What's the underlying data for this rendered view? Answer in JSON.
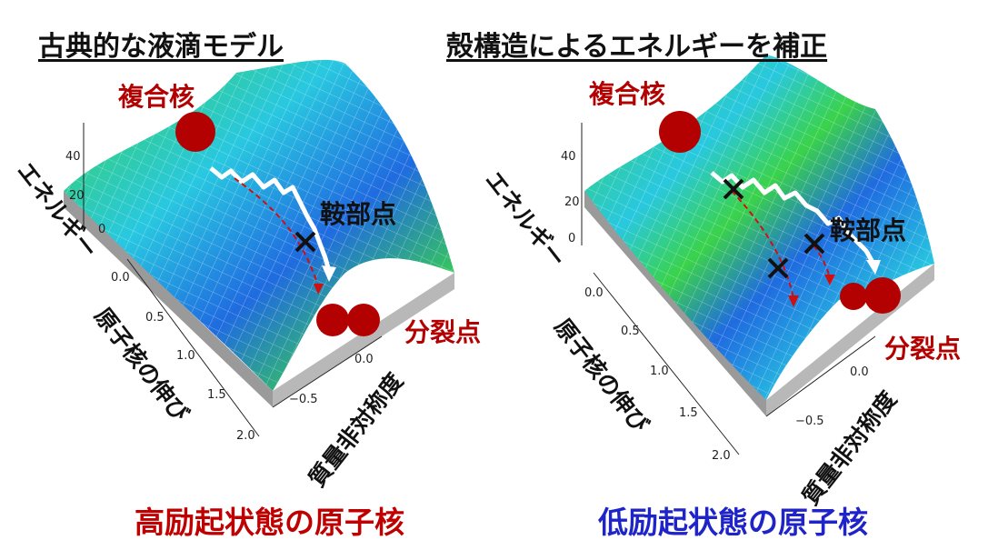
{
  "left": {
    "title": "古典的な液滴モデル",
    "caption": "高励起状態の原子核",
    "compound_label": "複合核",
    "saddle_label": "鞍部点",
    "scission_label": "分裂点",
    "energy_axis_label": "エネルギー",
    "elongation_axis_label": "原子核の伸び",
    "asymmetry_axis_label": "質量非対称度",
    "energy_ticks": [
      "40",
      "20",
      "0"
    ],
    "elongation_ticks": [
      "0.0",
      "0.5",
      "1.0",
      "1.5",
      "2.0"
    ],
    "asymmetry_ticks": [
      "−0.5",
      "0.0"
    ]
  },
  "right": {
    "title": "殻構造によるエネルギーを補正",
    "caption": "低励起状態の原子核",
    "compound_label": "複合核",
    "saddle_label": "鞍部点",
    "scission_label": "分裂点",
    "energy_axis_label": "エネルギー",
    "elongation_axis_label": "原子核の伸び",
    "asymmetry_axis_label": "質量非対称度",
    "energy_ticks": [
      "40",
      "20",
      "0"
    ],
    "elongation_ticks": [
      "0.0",
      "0.5",
      "1.0",
      "1.5",
      "2.0"
    ],
    "asymmetry_ticks": [
      "−0.5",
      "0.0"
    ]
  },
  "colors": {
    "nucleus_red": "#b30000",
    "surface_green": "#3ad24a",
    "surface_blue": "#1f6be0",
    "surface_cyan": "#28c8e0",
    "high_excitation_caption": "#c00000",
    "low_excitation_caption": "#1f24c8"
  }
}
